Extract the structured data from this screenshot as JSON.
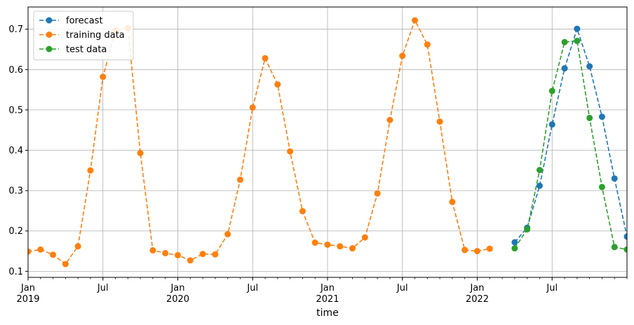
{
  "chart_data": {
    "type": "line",
    "title": "",
    "xlabel": "time",
    "ylabel": "",
    "xlim": [
      "2019-01",
      "2022-12"
    ],
    "ylim": [
      0.085,
      0.755
    ],
    "grid": true,
    "legend_position": "top-left",
    "x_major_ticks": [
      {
        "date": "2019-01",
        "label": "Jan",
        "year": "2019"
      },
      {
        "date": "2019-07",
        "label": "Jul",
        "year": ""
      },
      {
        "date": "2020-01",
        "label": "Jan",
        "year": "2020"
      },
      {
        "date": "2020-07",
        "label": "Jul",
        "year": ""
      },
      {
        "date": "2021-01",
        "label": "Jan",
        "year": "2021"
      },
      {
        "date": "2021-07",
        "label": "Jul",
        "year": ""
      },
      {
        "date": "2022-01",
        "label": "Jan",
        "year": "2022"
      },
      {
        "date": "2022-07",
        "label": "Jul",
        "year": ""
      }
    ],
    "y_ticks": [
      0.1,
      0.2,
      0.3,
      0.4,
      0.5,
      0.6,
      0.7
    ],
    "series": [
      {
        "name": "forecast",
        "color": "#1f77b4",
        "x": [
          "2022-04",
          "2022-05",
          "2022-06",
          "2022-07",
          "2022-08",
          "2022-09",
          "2022-10",
          "2022-11",
          "2022-12",
          "2023-01"
        ],
        "y": [
          0.172,
          0.208,
          0.312,
          0.464,
          0.603,
          0.701,
          0.608,
          0.483,
          0.33,
          0.186
        ]
      },
      {
        "name": "training data",
        "color": "#ff7f0e",
        "x": [
          "2019-01",
          "2019-02",
          "2019-03",
          "2019-04",
          "2019-05",
          "2019-06",
          "2019-07",
          "2019-08",
          "2019-09",
          "2019-10",
          "2019-11",
          "2019-12",
          "2020-01",
          "2020-02",
          "2020-03",
          "2020-04",
          "2020-05",
          "2020-06",
          "2020-07",
          "2020-08",
          "2020-09",
          "2020-10",
          "2020-11",
          "2020-12",
          "2021-01",
          "2021-02",
          "2021-03",
          "2021-04",
          "2021-05",
          "2021-06",
          "2021-07",
          "2021-08",
          "2021-09",
          "2021-10",
          "2021-11",
          "2021-12",
          "2022-01",
          "2022-02"
        ],
        "y": [
          0.149,
          0.154,
          0.141,
          0.118,
          0.162,
          0.35,
          0.582,
          0.697,
          0.703,
          0.393,
          0.152,
          0.145,
          0.14,
          0.127,
          0.143,
          0.142,
          0.192,
          0.327,
          0.506,
          0.628,
          0.563,
          0.397,
          0.249,
          0.171,
          0.166,
          0.162,
          0.157,
          0.184,
          0.293,
          0.475,
          0.634,
          0.722,
          0.662,
          0.471,
          0.272,
          0.153,
          0.15,
          0.156
        ]
      },
      {
        "name": "test data",
        "color": "#2ca02c",
        "x": [
          "2022-04",
          "2022-05",
          "2022-06",
          "2022-07",
          "2022-08",
          "2022-09",
          "2022-10",
          "2022-11",
          "2022-12",
          "2023-01"
        ],
        "y": [
          0.157,
          0.204,
          0.351,
          0.547,
          0.668,
          0.671,
          0.48,
          0.309,
          0.16,
          0.154
        ]
      }
    ]
  }
}
